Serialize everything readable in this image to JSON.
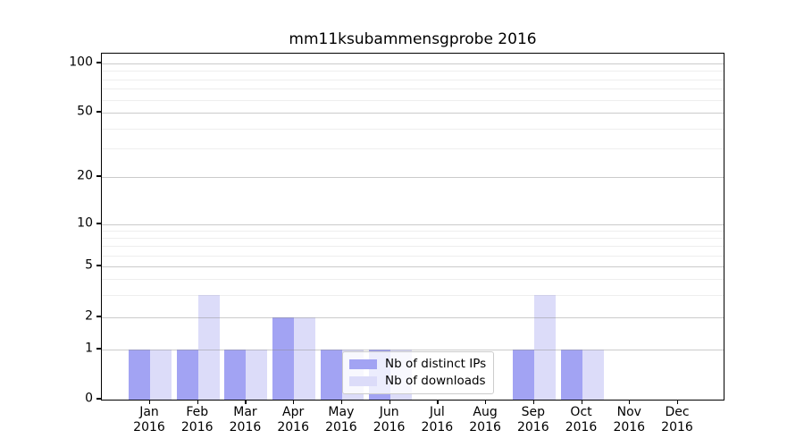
{
  "title": "mm11ksubammensgprobe 2016",
  "legend": {
    "items": [
      {
        "label": "Nb of distinct IPs",
        "color": "#a2a3f3"
      },
      {
        "label": "Nb of downloads",
        "color": "#dcdcf9"
      }
    ]
  },
  "chart_data": {
    "type": "bar",
    "title": "mm11ksubammensgprobe 2016",
    "categories": [
      "Jan 2016",
      "Feb 2016",
      "Mar 2016",
      "Apr 2016",
      "May 2016",
      "Jun 2016",
      "Jul 2016",
      "Aug 2016",
      "Sep 2016",
      "Oct 2016",
      "Nov 2016",
      "Dec 2016"
    ],
    "months": [
      "Jan",
      "Feb",
      "Mar",
      "Apr",
      "May",
      "Jun",
      "Jul",
      "Aug",
      "Sep",
      "Oct",
      "Nov",
      "Dec"
    ],
    "year": "2016",
    "series": [
      {
        "name": "Nb of distinct IPs",
        "color": "#a2a3f3",
        "values": [
          1,
          1,
          1,
          2,
          1,
          1,
          0,
          0,
          1,
          1,
          0,
          0
        ]
      },
      {
        "name": "Nb of downloads",
        "color": "#dcdcf9",
        "values": [
          1,
          3,
          1,
          2,
          1,
          1,
          0,
          0,
          3,
          1,
          0,
          0
        ]
      }
    ],
    "yscale": "symlog",
    "yticks": [
      0,
      1,
      2,
      5,
      10,
      20,
      50,
      100
    ],
    "ytick_labels": [
      "0",
      "1",
      "2",
      "5",
      "10",
      "20",
      "50",
      "100"
    ],
    "minor_yticks": [
      3,
      4,
      6,
      7,
      8,
      9,
      30,
      40,
      60,
      70,
      80,
      90
    ],
    "ylim": [
      0,
      120
    ],
    "xlabel": "",
    "ylabel": "",
    "grid": true,
    "legend_position": "lower-center-inside"
  }
}
